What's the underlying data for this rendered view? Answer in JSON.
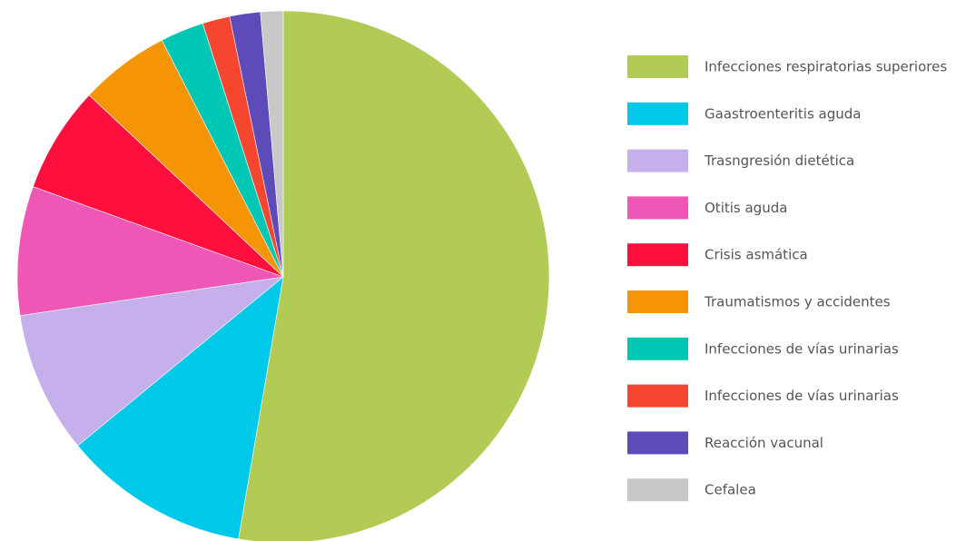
{
  "chart_data": {
    "type": "pie",
    "title": "",
    "legend_position": "right",
    "start_angle_deg": 0,
    "direction": "clockwise",
    "slices": [
      {
        "label": "Infecciones respiratorias superiores",
        "value": 53.8,
        "color": "#B1CB55"
      },
      {
        "label": "Gaastroenteritis aguda",
        "value": 11.6,
        "color": "#00C8E8"
      },
      {
        "label": "Trasngresión dietética",
        "value": 8.8,
        "color": "#C5B0EC"
      },
      {
        "label": "Otitis aguda",
        "value": 8.0,
        "color": "#EE57B6"
      },
      {
        "label": "Crisis asmática",
        "value": 6.6,
        "color": "#FF0F3E"
      },
      {
        "label": "Traumatismos y accidentes",
        "value": 5.6,
        "color": "#F59505"
      },
      {
        "label": "Infecciones de vías urinarias",
        "value": 2.7,
        "color": "#00C6B4"
      },
      {
        "label": "Infecciones de vías urinarias",
        "value": 1.7,
        "color": "#F54730"
      },
      {
        "label": "Reacción vacunal",
        "value": 1.9,
        "color": "#5F4AB9"
      },
      {
        "label": "Cefalea",
        "value": 1.4,
        "color": "#C8C8C8"
      }
    ]
  }
}
